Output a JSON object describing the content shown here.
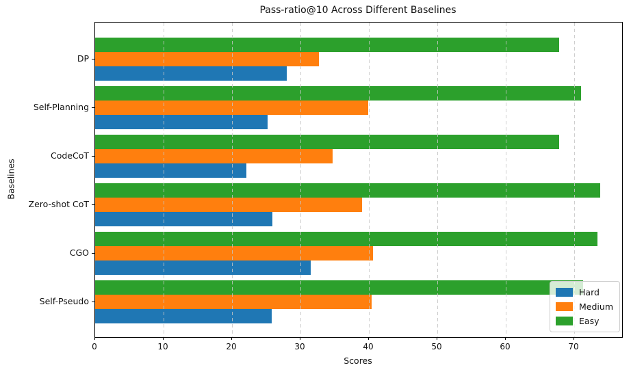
{
  "chart_data": {
    "type": "bar",
    "orientation": "horizontal",
    "title": "Pass-ratio@10 Across Different Baselines",
    "xlabel": "Scores",
    "ylabel": "Baselines",
    "categories": [
      "DP",
      "Self-Planning",
      "CodeCoT",
      "Zero-shot CoT",
      "CGO",
      "Self-Pseudo"
    ],
    "series": [
      {
        "name": "Hard",
        "color": "#1f77b4",
        "values": [
          28.0,
          25.2,
          22.1,
          25.9,
          31.5,
          25.8
        ]
      },
      {
        "name": "Medium",
        "color": "#ff7f0e",
        "values": [
          32.7,
          39.9,
          34.7,
          39.0,
          40.6,
          40.4
        ]
      },
      {
        "name": "Easy",
        "color": "#2ca02c",
        "values": [
          67.8,
          71.0,
          67.8,
          73.8,
          73.4,
          71.3
        ]
      }
    ],
    "bar_order_top_to_bottom": [
      "Easy",
      "Medium",
      "Hard"
    ],
    "xlim": [
      0,
      77
    ],
    "xticks": [
      0,
      10,
      20,
      30,
      40,
      50,
      60,
      70
    ],
    "grid": {
      "axis": "x",
      "style": "dashed",
      "color": "#c6c6c6",
      "drawn_above_bars": true
    },
    "legend": {
      "position": "lower right",
      "entries": [
        {
          "label": "Hard",
          "color": "#1f77b4"
        },
        {
          "label": "Medium",
          "color": "#ff7f0e"
        },
        {
          "label": "Easy",
          "color": "#2ca02c"
        }
      ]
    }
  }
}
